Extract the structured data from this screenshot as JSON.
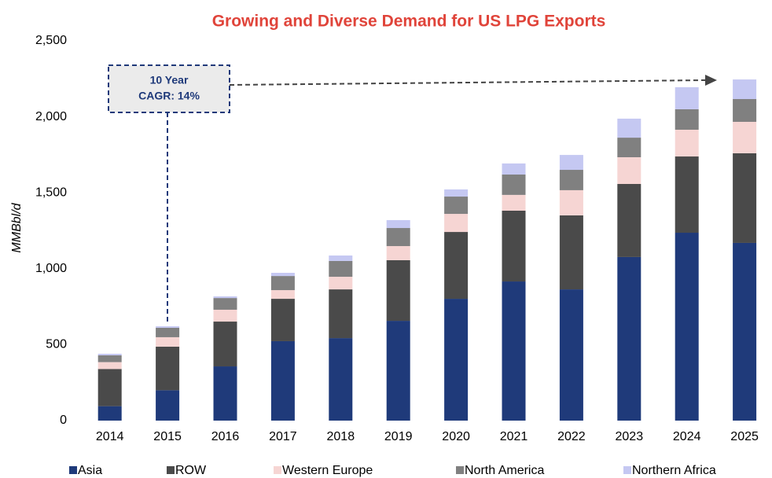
{
  "chart_data": {
    "type": "stacked_bar",
    "title": "Growing and Diverse Demand for US LPG Exports",
    "y_label": "MMBbl/d",
    "annotation": [
      "10 Year",
      "CAGR: 14%"
    ],
    "categories": [
      "2014",
      "2015",
      "2016",
      "2017",
      "2018",
      "2019",
      "2020",
      "2021",
      "2022",
      "2023",
      "2024",
      "2025"
    ],
    "series": [
      {
        "name": "Asia",
        "color": "#1f3a7a",
        "values": [
          95,
          200,
          357,
          523,
          543,
          657,
          802,
          916,
          864,
          1077,
          1237,
          1170
        ]
      },
      {
        "name": "ROW",
        "color": "#4a4a4a",
        "values": [
          245,
          287,
          295,
          279,
          321,
          399,
          440,
          466,
          487,
          481,
          502,
          590
        ]
      },
      {
        "name": "Western Europe",
        "color": "#f6d5d3",
        "values": [
          45,
          62,
          78,
          57,
          83,
          93,
          119,
          104,
          166,
          176,
          176,
          207
        ]
      },
      {
        "name": "North America",
        "color": "#808080",
        "values": [
          45,
          62,
          77,
          93,
          104,
          119,
          114,
          134,
          134,
          129,
          135,
          150
        ]
      },
      {
        "name": "Northern Africa",
        "color": "#c5c8f2",
        "values": [
          10,
          10,
          11,
          21,
          36,
          52,
          47,
          73,
          98,
          125,
          145,
          129
        ]
      }
    ],
    "ylim": [
      0,
      2500
    ],
    "yticks": [
      0,
      500,
      {
        "value": 1000,
        "label": "1,000"
      },
      {
        "value": 1500,
        "label": "1,500"
      },
      {
        "value": 2000,
        "label": "2,000"
      },
      {
        "value": 2500,
        "label": "2,500"
      }
    ],
    "grid": false,
    "legend": "bottom"
  }
}
